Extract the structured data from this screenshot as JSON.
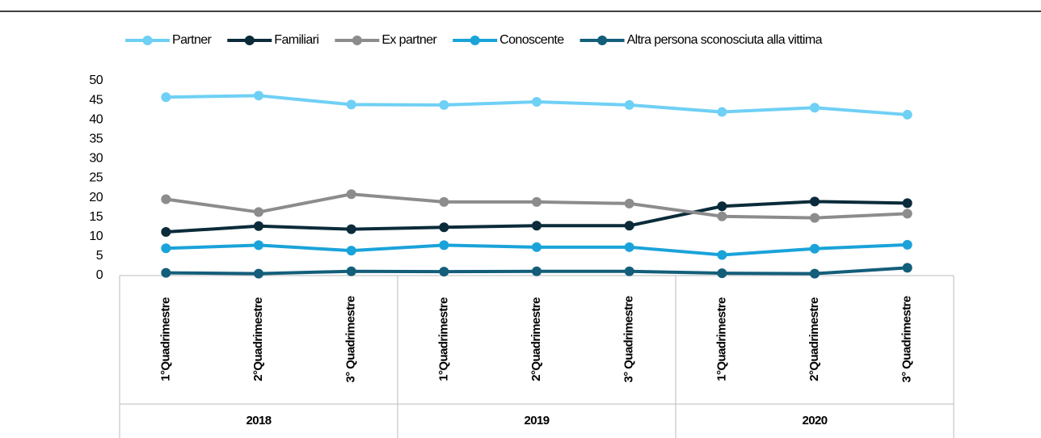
{
  "chart_data": {
    "type": "line",
    "categories": [
      "1°Quadrimestre",
      "2°Quadrimestre",
      "3° Quadrimestre",
      "1°Quadrimestre",
      "2°Quadrimestre",
      "3° Quadrimestre",
      "1°Quadrimestre",
      "2°Quadrimestre",
      "3° Quadrimestre"
    ],
    "groups": [
      "2018",
      "2019",
      "2020"
    ],
    "series": [
      {
        "name": "Partner",
        "color": "#6fd0f5",
        "values": [
          45.8,
          46.2,
          43.9,
          43.8,
          44.6,
          43.8,
          42.0,
          43.1,
          41.3
        ]
      },
      {
        "name": "Familiari",
        "color": "#0b2b3a",
        "values": [
          11.2,
          12.7,
          11.9,
          12.4,
          12.8,
          12.8,
          17.8,
          19.0,
          18.6
        ]
      },
      {
        "name": "Ex partner",
        "color": "#8c8c8c",
        "values": [
          19.6,
          16.3,
          20.9,
          18.9,
          18.9,
          18.5,
          15.2,
          14.8,
          15.9
        ]
      },
      {
        "name": "Conoscente",
        "color": "#1aa3d9",
        "values": [
          7.0,
          7.8,
          6.4,
          7.8,
          7.3,
          7.3,
          5.3,
          6.9,
          7.9
        ]
      },
      {
        "name": "Altra persona sconosciuta alla vittima",
        "color": "#135e7a",
        "values": [
          0.7,
          0.5,
          1.1,
          1.0,
          1.1,
          1.1,
          0.6,
          0.5,
          2.0
        ]
      }
    ],
    "ylim": [
      0,
      50
    ],
    "yticks": [
      0,
      5,
      10,
      15,
      20,
      25,
      30,
      35,
      40,
      45,
      50
    ],
    "grid": false,
    "legend": "top"
  }
}
